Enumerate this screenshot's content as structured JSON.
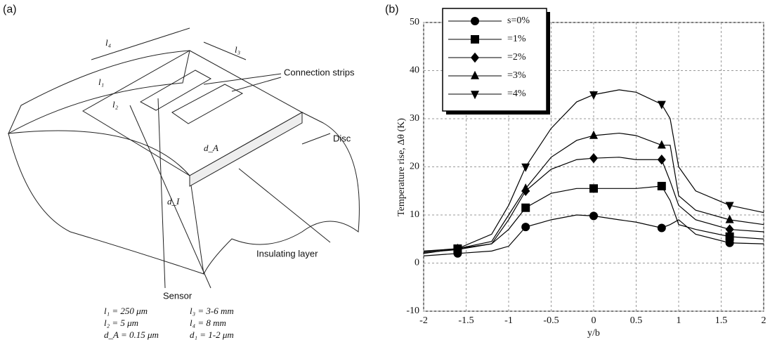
{
  "panel_a": {
    "label": "(a)",
    "labels": {
      "l4": "l₄",
      "l3": "l₃",
      "l1": "l₁",
      "l2": "l₂",
      "dA": "d_A",
      "dI": "d_I",
      "connection": "Connection strips",
      "disc": "Disc",
      "insulating": "Insulating layer",
      "sensor": "Sensor"
    },
    "formulas": [
      "l₁ = 250 μm",
      "l₃ = 3-6 mm",
      "l₂ = 5 μm",
      "l₄ = 8 mm",
      "d_A = 0.15 μm",
      "d₁ = 1-2 μm"
    ]
  },
  "panel_b": {
    "label": "(b)"
  },
  "chart_data": {
    "type": "line",
    "xlabel": "y/b",
    "ylabel": "Temperature rise, Δθ (K)",
    "x": [
      -2,
      -1.6,
      -1.2,
      -1,
      -0.8,
      -0.5,
      -0.2,
      0,
      0.3,
      0.5,
      0.8,
      0.9,
      1,
      1.2,
      1.6,
      2
    ],
    "marker_x": [
      -1.6,
      -0.8,
      0,
      0.8,
      1.6
    ],
    "series": [
      {
        "name": "s=0%",
        "marker": "circle",
        "color": "#000000",
        "values": [
          1.5,
          2,
          2.5,
          3.5,
          7.5,
          9,
          10,
          9.8,
          9,
          8.5,
          7.3,
          8,
          9,
          6,
          4.2,
          4
        ]
      },
      {
        "name": "=1%",
        "marker": "square",
        "color": "#000000",
        "values": [
          2,
          3,
          4,
          7,
          11.5,
          14.5,
          15.5,
          15.5,
          15.5,
          15.5,
          16,
          13,
          8,
          7,
          5.5,
          5
        ]
      },
      {
        "name": "=2%",
        "marker": "diamond",
        "color": "#000000",
        "values": [
          2.2,
          2.8,
          4,
          9,
          15,
          19.5,
          21.5,
          21.8,
          22,
          21.5,
          21.5,
          17,
          12,
          9,
          7,
          6.5
        ]
      },
      {
        "name": "=3%",
        "marker": "triangle-up",
        "color": "#000000",
        "values": [
          2.4,
          3,
          4.5,
          10,
          15.5,
          22,
          25.5,
          26.5,
          27,
          26.5,
          24.5,
          24.5,
          14,
          11,
          9,
          8
        ]
      },
      {
        "name": "=4%",
        "marker": "triangle-down",
        "color": "#000000",
        "values": [
          2.5,
          3,
          6,
          12,
          20,
          28,
          33.5,
          35,
          36,
          35.5,
          33,
          30,
          20,
          15,
          12,
          10.5
        ]
      }
    ],
    "xlim": [
      -2,
      2
    ],
    "ylim": [
      -10,
      50
    ],
    "xticks": [
      -2,
      -1.5,
      -1,
      -0.5,
      0,
      0.5,
      1,
      1.5,
      2
    ],
    "yticks": [
      -10,
      0,
      10,
      20,
      30,
      40,
      50
    ],
    "grid": true,
    "legend": "upper left"
  }
}
